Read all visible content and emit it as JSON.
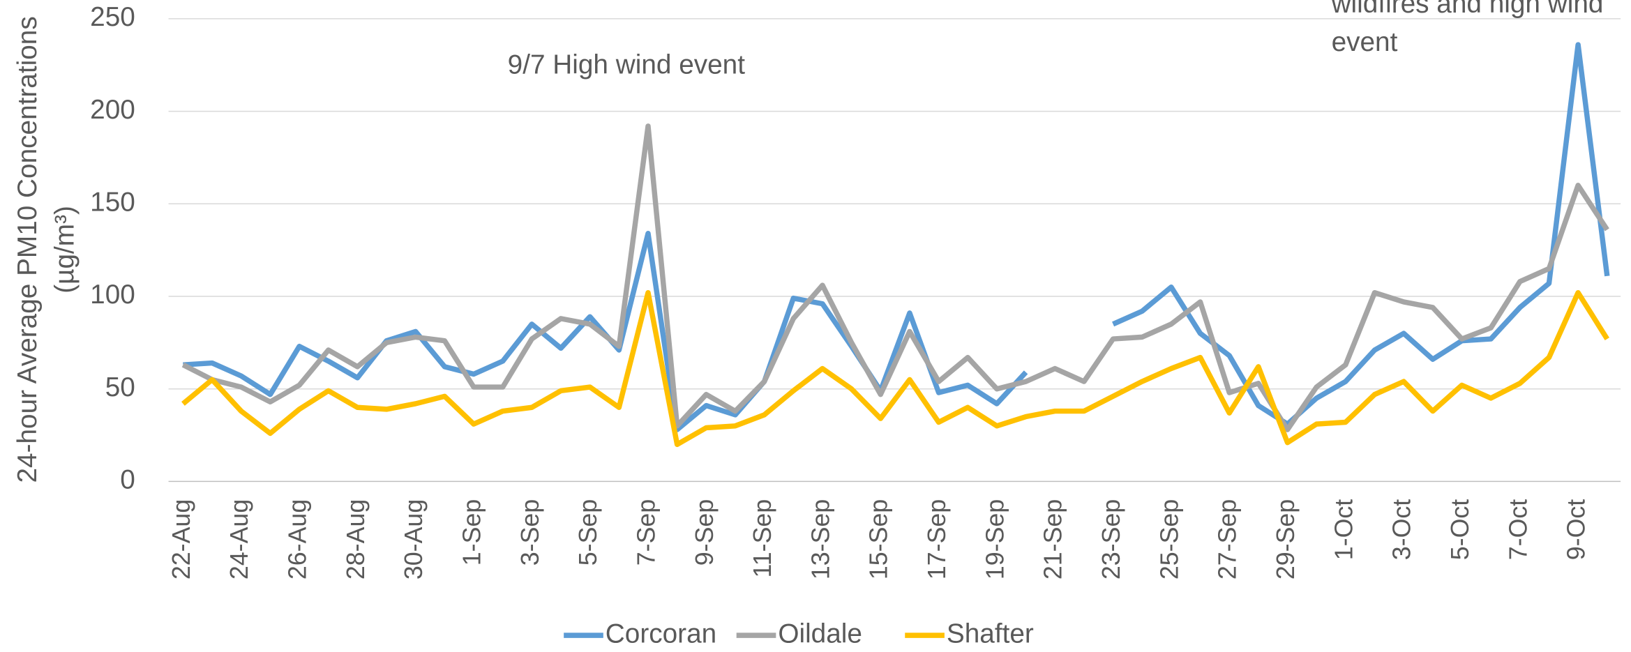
{
  "chart_data": {
    "type": "line",
    "ylabel": [
      "24-hour Average PM10 Concentrations",
      "(µg/m³)"
    ],
    "annotations": [
      {
        "lines": [
          "9/7 High wind event"
        ]
      },
      {
        "lines": [
          "wildfires and high wind",
          "event"
        ]
      }
    ],
    "categories": [
      "22-Aug",
      null,
      "24-Aug",
      null,
      "26-Aug",
      null,
      "28-Aug",
      null,
      "30-Aug",
      null,
      "1-Sep",
      null,
      "3-Sep",
      null,
      "5-Sep",
      null,
      "7-Sep",
      null,
      "9-Sep",
      null,
      "11-Sep",
      null,
      "13-Sep",
      null,
      "15-Sep",
      null,
      "17-Sep",
      null,
      "19-Sep",
      null,
      "21-Sep",
      null,
      "23-Sep",
      null,
      "25-Sep",
      null,
      "27-Sep",
      null,
      "29-Sep",
      null,
      "1-Oct",
      null,
      "3-Oct",
      null,
      "5-Oct",
      null,
      "7-Oct",
      null,
      "9-Oct",
      null
    ],
    "series": [
      {
        "name": "Corcoran",
        "color": "#5b9bd5",
        "values": [
          63,
          64,
          57,
          47,
          73,
          65,
          56,
          76,
          81,
          62,
          58,
          65,
          85,
          72,
          89,
          71,
          134,
          28,
          41,
          36,
          54,
          99,
          96,
          73,
          49,
          91,
          48,
          52,
          42,
          59,
          null,
          null,
          85,
          92,
          105,
          80,
          68,
          41,
          31,
          45,
          54,
          71,
          80,
          66,
          76,
          77,
          94,
          107,
          236,
          111
        ]
      },
      {
        "name": "Oildale",
        "color": "#a5a5a5",
        "values": [
          63,
          55,
          51,
          43,
          52,
          71,
          62,
          75,
          78,
          76,
          51,
          51,
          77,
          88,
          85,
          73,
          192,
          30,
          47,
          38,
          54,
          88,
          106,
          75,
          47,
          81,
          54,
          67,
          50,
          54,
          61,
          54,
          77,
          78,
          85,
          97,
          48,
          53,
          28,
          51,
          63,
          102,
          97,
          94,
          77,
          83,
          108,
          115,
          160,
          136
        ]
      },
      {
        "name": "Shafter",
        "color": "#ffc000",
        "values": [
          42,
          55,
          38,
          26,
          39,
          49,
          40,
          39,
          42,
          46,
          31,
          38,
          40,
          49,
          51,
          40,
          102,
          20,
          29,
          30,
          36,
          49,
          61,
          50,
          34,
          55,
          32,
          40,
          30,
          35,
          38,
          38,
          46,
          54,
          61,
          67,
          37,
          62,
          21,
          31,
          32,
          47,
          54,
          38,
          52,
          45,
          53,
          67,
          102,
          77
        ]
      }
    ],
    "ylim": [
      0,
      250
    ],
    "yticks": [
      0,
      50,
      100,
      150,
      200,
      250
    ],
    "grid": true,
    "legend": "bottom"
  }
}
